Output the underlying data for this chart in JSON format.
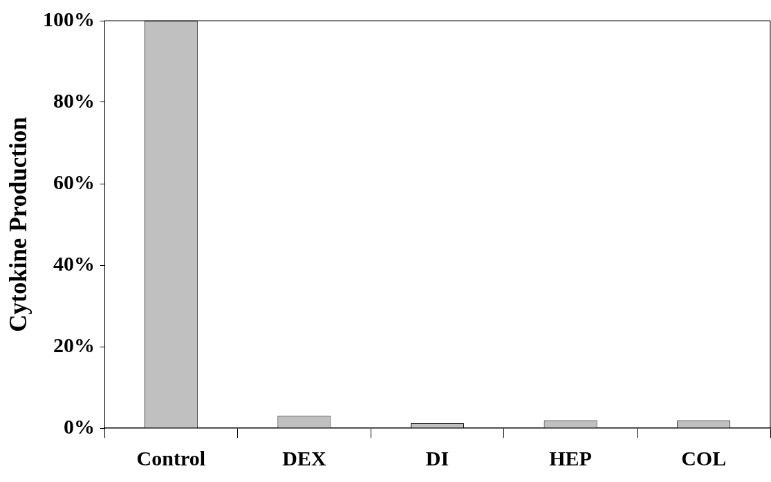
{
  "chart_data": {
    "type": "bar",
    "ylabel": "Cytokine Production",
    "categories": [
      "Control",
      "DEX",
      "DI",
      "HEP",
      "COL"
    ],
    "series": [
      {
        "color": "#c0c0c0",
        "values": [
          100,
          3,
          1.2,
          1.9,
          1.9
        ]
      }
    ],
    "ylim": [
      0,
      100
    ],
    "yticks": [
      {
        "value": 0,
        "label": "0%"
      },
      {
        "value": 20,
        "label": "20%"
      },
      {
        "value": 40,
        "label": "40%"
      },
      {
        "value": 60,
        "label": "60%"
      },
      {
        "value": 80,
        "label": "80%"
      },
      {
        "value": 100,
        "label": "100%"
      }
    ],
    "grid": false,
    "legend": false
  }
}
